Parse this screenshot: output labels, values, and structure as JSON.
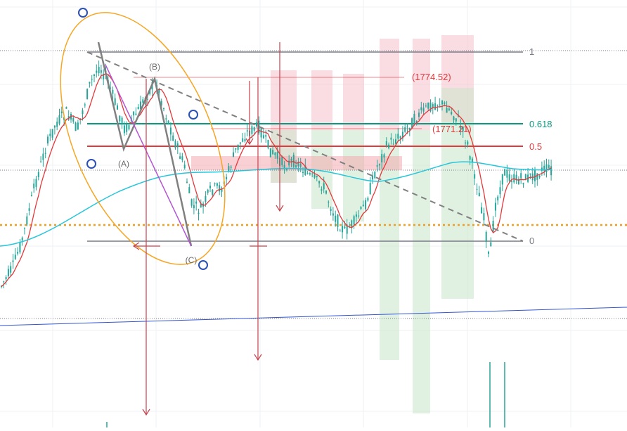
{
  "chart_data": {
    "type": "line",
    "title": "",
    "xlabel": "",
    "ylabel": "",
    "grid": true,
    "fib_levels": [
      {
        "label": "1",
        "color": "#787b86"
      },
      {
        "label": "0.618",
        "color": "#089981"
      },
      {
        "label": "0.5",
        "color": "#e5383b"
      },
      {
        "label": "0",
        "color": "#787b86"
      }
    ],
    "wave_labels": [
      "(A)",
      "(B)",
      "(C)"
    ],
    "price_labels": [
      "(1774.52)",
      "(1771.21)"
    ],
    "colors": {
      "candle_up": "#26a69a",
      "candle_down": "#26a69a",
      "ma_fast": "#e5383b",
      "ma_slow": "#26c6da",
      "wave_line": "#808080",
      "diagonal": "#b455d2",
      "ellipse": "#f5a623",
      "handle": "#2a4fb5",
      "level_orange": "#f29d1f",
      "trendline_blue": "#3155d0",
      "arrow_red": "#c6414b",
      "zone_red": "#f6c1cc",
      "zone_green": "#c8e6c9"
    }
  }
}
